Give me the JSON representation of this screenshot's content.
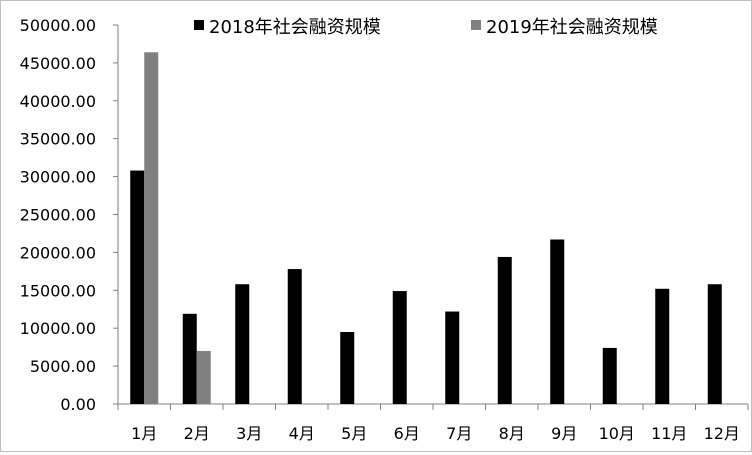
{
  "chart_data": {
    "type": "bar",
    "title": "",
    "xlabel": "",
    "ylabel": "",
    "categories": [
      "1月",
      "2月",
      "3月",
      "4月",
      "5月",
      "6月",
      "7月",
      "8月",
      "9月",
      "10月",
      "11月",
      "12月"
    ],
    "series": [
      {
        "name": "2018年社会融资规模",
        "color": "#000000",
        "values": [
          30800,
          11900,
          15800,
          17800,
          9500,
          14900,
          12200,
          19400,
          21700,
          7400,
          15200,
          15800
        ]
      },
      {
        "name": "2019年社会融资规模",
        "color": "#808080",
        "values": [
          46400,
          7000,
          null,
          null,
          null,
          null,
          null,
          null,
          null,
          null,
          null,
          null
        ]
      }
    ],
    "ylim": [
      0,
      50000
    ],
    "yticks": [
      "0.00",
      "5000.00",
      "10000.00",
      "15000.00",
      "20000.00",
      "25000.00",
      "30000.00",
      "35000.00",
      "40000.00",
      "45000.00",
      "50000.00"
    ],
    "grid": false,
    "legend_position": "top"
  }
}
